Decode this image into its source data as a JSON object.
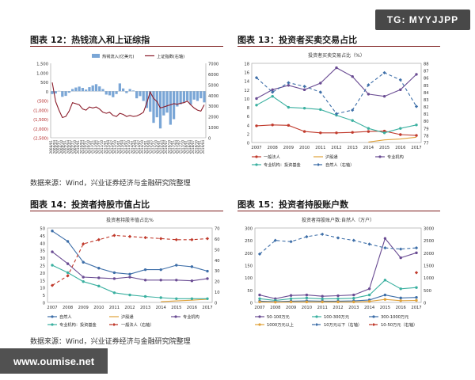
{
  "watermark_top": "TG: MYYJJPP",
  "watermark_bottom": "www.oumise.net",
  "source_1": "数据来源：Wind，兴业证券经济与金融研究院整理",
  "source_2": "数据来源：Wind，兴业证券经济与金融研究院整理",
  "chart_data": [
    {
      "id": "fig12",
      "type": "area",
      "title": "图表 12：热钱流入和上证综指",
      "legend": [
        "热钱流入(亿美元)",
        "上证指数(右轴)"
      ],
      "legend_position": "top",
      "colors": {
        "hot_money": "#7aa6d6",
        "index": "#8b1c2a"
      },
      "ylim_left": [
        -2500,
        1500
      ],
      "yticks_left": [
        "1,500",
        "1,000",
        "500",
        "0",
        "(500)",
        "(1,000)",
        "(1,500)",
        "(2,000)",
        "(2,500)"
      ],
      "ylim_right": [
        0,
        7000
      ],
      "yticks_right": [
        "7000",
        "6000",
        "5000",
        "4000",
        "3000",
        "2000",
        "1000",
        "0"
      ],
      "xticks": [
        "2008/01",
        "2008/04",
        "2008/07",
        "2008/10",
        "2009/01",
        "2009/04",
        "2009/07",
        "2009/10",
        "2010/01",
        "2010/04",
        "2010/07",
        "2010/10",
        "2011/01",
        "2011/04",
        "2011/07",
        "2011/10",
        "2012/01",
        "2012/04",
        "2012/07",
        "2012/10",
        "2013/01",
        "2013/04",
        "2013/07",
        "2013/10",
        "2014/01",
        "2014/04",
        "2014/07",
        "2014/10",
        "2015/01",
        "2015/04",
        "2015/07",
        "2015/10",
        "2016/01",
        "2016/04",
        "2016/07",
        "2016/10",
        "2017/01",
        "2017/04",
        "2017/07",
        "2017/10",
        "2018/01",
        "2018/04",
        "2018/07",
        "2018/10",
        "2019/01",
        "2019/04"
      ],
      "hot_money": [
        -150,
        -120,
        20,
        -300,
        -250,
        -80,
        120,
        200,
        250,
        180,
        90,
        220,
        310,
        380,
        260,
        120,
        -180,
        -220,
        -320,
        -150,
        420,
        150,
        -100,
        120,
        40,
        -380,
        -260,
        -520,
        -900,
        -1100,
        -1700,
        -1400,
        -2000,
        -1300,
        -1150,
        -1800,
        -1500,
        -820,
        -700,
        -600,
        -500,
        -720,
        -450,
        -520,
        -380,
        -600
      ],
      "index": [
        5200,
        3400,
        2600,
        1900,
        2000,
        2500,
        3300,
        3200,
        3100,
        2700,
        2600,
        2900,
        2800,
        2900,
        2700,
        2400,
        2300,
        2400,
        2100,
        2000,
        2300,
        2200,
        2000,
        2100,
        2000,
        2050,
        2200,
        2400,
        3300,
        4300,
        3700,
        3400,
        2800,
        2900,
        3000,
        3100,
        3200,
        3150,
        3250,
        3300,
        3450,
        3100,
        2800,
        2600,
        2500,
        3100
      ]
    },
    {
      "id": "fig13",
      "type": "line",
      "title": "图表 13：投资者买卖交易占比",
      "subtitle": "投资者买卖交易占比（%）",
      "x": [
        2007,
        2008,
        2009,
        2010,
        2011,
        2012,
        2013,
        2014,
        2015,
        2016,
        2017
      ],
      "ylim_left": [
        0,
        18
      ],
      "yticks_left": [
        "18",
        "16",
        "14",
        "12",
        "10",
        "8",
        "6",
        "4",
        "2",
        "0"
      ],
      "ylim_right": [
        77,
        88
      ],
      "yticks_right": [
        "88",
        "87",
        "86",
        "85",
        "84",
        "83",
        "82",
        "81",
        "80",
        "79",
        "78",
        "77"
      ],
      "legend_position": "bottom",
      "series": [
        {
          "name": "一般法人",
          "axis": "left",
          "color": "#c0392b",
          "marker": "circle",
          "dash": "",
          "values": [
            3.8,
            4.0,
            3.9,
            2.5,
            2.2,
            2.2,
            2.3,
            2.5,
            2.6,
            1.8,
            1.6
          ]
        },
        {
          "name": "沪股通",
          "axis": "left",
          "color": "#e0a23a",
          "marker": "none",
          "dash": "",
          "values": [
            null,
            null,
            null,
            null,
            null,
            null,
            null,
            0.1,
            0.6,
            0.8,
            1.2
          ]
        },
        {
          "name": "专业机构",
          "axis": "left",
          "color": "#6a4c93",
          "marker": "circle",
          "dash": "",
          "values": [
            10,
            12,
            13,
            12,
            13.5,
            17,
            15,
            11,
            10.5,
            12,
            15.5
          ]
        },
        {
          "name": "专业机构：投资基金",
          "axis": "left",
          "color": "#3ab0a0",
          "marker": "circle",
          "dash": "",
          "values": [
            8.5,
            10.5,
            8,
            7.8,
            7.5,
            6.2,
            5,
            3.2,
            2.2,
            3.2,
            4
          ]
        },
        {
          "name": "自然人（右轴）",
          "axis": "right",
          "color": "#3d6ea8",
          "marker": "diamond",
          "dash": "4,3",
          "values": [
            86,
            84,
            85.3,
            84.8,
            84,
            81,
            81.5,
            85,
            86.7,
            85.7,
            82
          ]
        }
      ]
    },
    {
      "id": "fig14",
      "type": "line",
      "title": "图表 14：投资者持股市值占比",
      "subtitle": "投资者持股市值占比%",
      "x": [
        2007,
        2008,
        2009,
        2010,
        2011,
        2012,
        2013,
        2014,
        2015,
        2016,
        2017
      ],
      "ylim_left": [
        0,
        50
      ],
      "yticks_left": [
        "50",
        "45",
        "40",
        "35",
        "30",
        "25",
        "20",
        "15",
        "10",
        "5",
        "0"
      ],
      "ylim_right": [
        0,
        70
      ],
      "yticks_right": [
        "70",
        "60",
        "50",
        "40",
        "30",
        "20",
        "10",
        "0"
      ],
      "legend_position": "bottom",
      "series": [
        {
          "name": "自然人",
          "axis": "left",
          "color": "#3d6ea8",
          "marker": "circle",
          "dash": "",
          "values": [
            48,
            41,
            27,
            23,
            20,
            19,
            22,
            22,
            25,
            24,
            21
          ]
        },
        {
          "name": "沪股通",
          "axis": "left",
          "color": "#e0a23a",
          "marker": "none",
          "dash": "",
          "values": [
            null,
            null,
            null,
            null,
            null,
            null,
            null,
            0.5,
            1,
            1.5,
            2.2
          ]
        },
        {
          "name": "专业机构",
          "axis": "left",
          "color": "#6a4c93",
          "marker": "circle",
          "dash": "",
          "values": [
            34,
            26,
            17,
            16.5,
            16,
            17,
            15,
            15,
            15,
            14.5,
            16
          ]
        },
        {
          "name": "专业机构：投资基金",
          "axis": "left",
          "color": "#3ab0a0",
          "marker": "circle",
          "dash": "",
          "values": [
            25,
            20,
            14,
            11,
            6.5,
            5,
            4,
            3.2,
            2.5,
            2.5,
            2.5
          ]
        },
        {
          "name": "一般法人（右轴）",
          "axis": "right",
          "color": "#c0392b",
          "marker": "diamond",
          "dash": "4,3",
          "values": [
            16,
            25,
            55,
            59,
            63,
            62,
            61,
            60,
            59,
            59,
            60
          ]
        }
      ]
    },
    {
      "id": "fig15",
      "type": "line",
      "title": "图表 15：投资者持股账户数",
      "subtitle": "投资者持股账户数:自然人（万户）",
      "x": [
        2007,
        2008,
        2009,
        2010,
        2011,
        2012,
        2013,
        2014,
        2015,
        2016,
        2017
      ],
      "ylim_left": [
        0,
        300
      ],
      "yticks_left": [
        "300",
        "250",
        "200",
        "150",
        "100",
        "50",
        "0"
      ],
      "ylim_right": [
        0,
        3000
      ],
      "yticks_right": [
        "3000",
        "2500",
        "2000",
        "1500",
        "1000",
        "500",
        "0"
      ],
      "legend_position": "bottom",
      "series": [
        {
          "name": "50-100万元",
          "axis": "left",
          "color": "#6a4c93",
          "marker": "circle",
          "dash": "",
          "values": [
            30,
            15,
            28,
            30,
            25,
            27,
            30,
            55,
            258,
            180,
            200
          ]
        },
        {
          "name": "100-300万元",
          "axis": "left",
          "color": "#3ab0a0",
          "marker": "circle",
          "dash": "",
          "values": [
            15,
            8,
            15,
            18,
            14,
            15,
            17,
            30,
            90,
            55,
            60
          ]
        },
        {
          "name": "300-1000万元",
          "axis": "left",
          "color": "#3d6ea8",
          "marker": "circle",
          "dash": "",
          "values": [
            5,
            3,
            5,
            6,
            5,
            5,
            6,
            10,
            30,
            18,
            20
          ]
        },
        {
          "name": "1000万元以上",
          "axis": "left",
          "color": "#e0a23a",
          "marker": "circle",
          "dash": "",
          "values": [
            2,
            1,
            2,
            2,
            2,
            2,
            2,
            4,
            12,
            7,
            8
          ]
        },
        {
          "name": "10万元以下（右轴）",
          "axis": "right",
          "color": "#3d6ea8",
          "marker": "diamond",
          "dash": "4,3",
          "values": [
            1950,
            2500,
            2450,
            2650,
            2750,
            2600,
            2500,
            2350,
            2200,
            2150,
            2200
          ]
        },
        {
          "name": "10-50万元（右轴）",
          "axis": "right",
          "color": "#c0392b",
          "marker": "diamond",
          "dash": "4,3",
          "values": [
            null,
            null,
            null,
            null,
            null,
            null,
            null,
            null,
            null,
            null,
            1200
          ]
        }
      ]
    }
  ]
}
